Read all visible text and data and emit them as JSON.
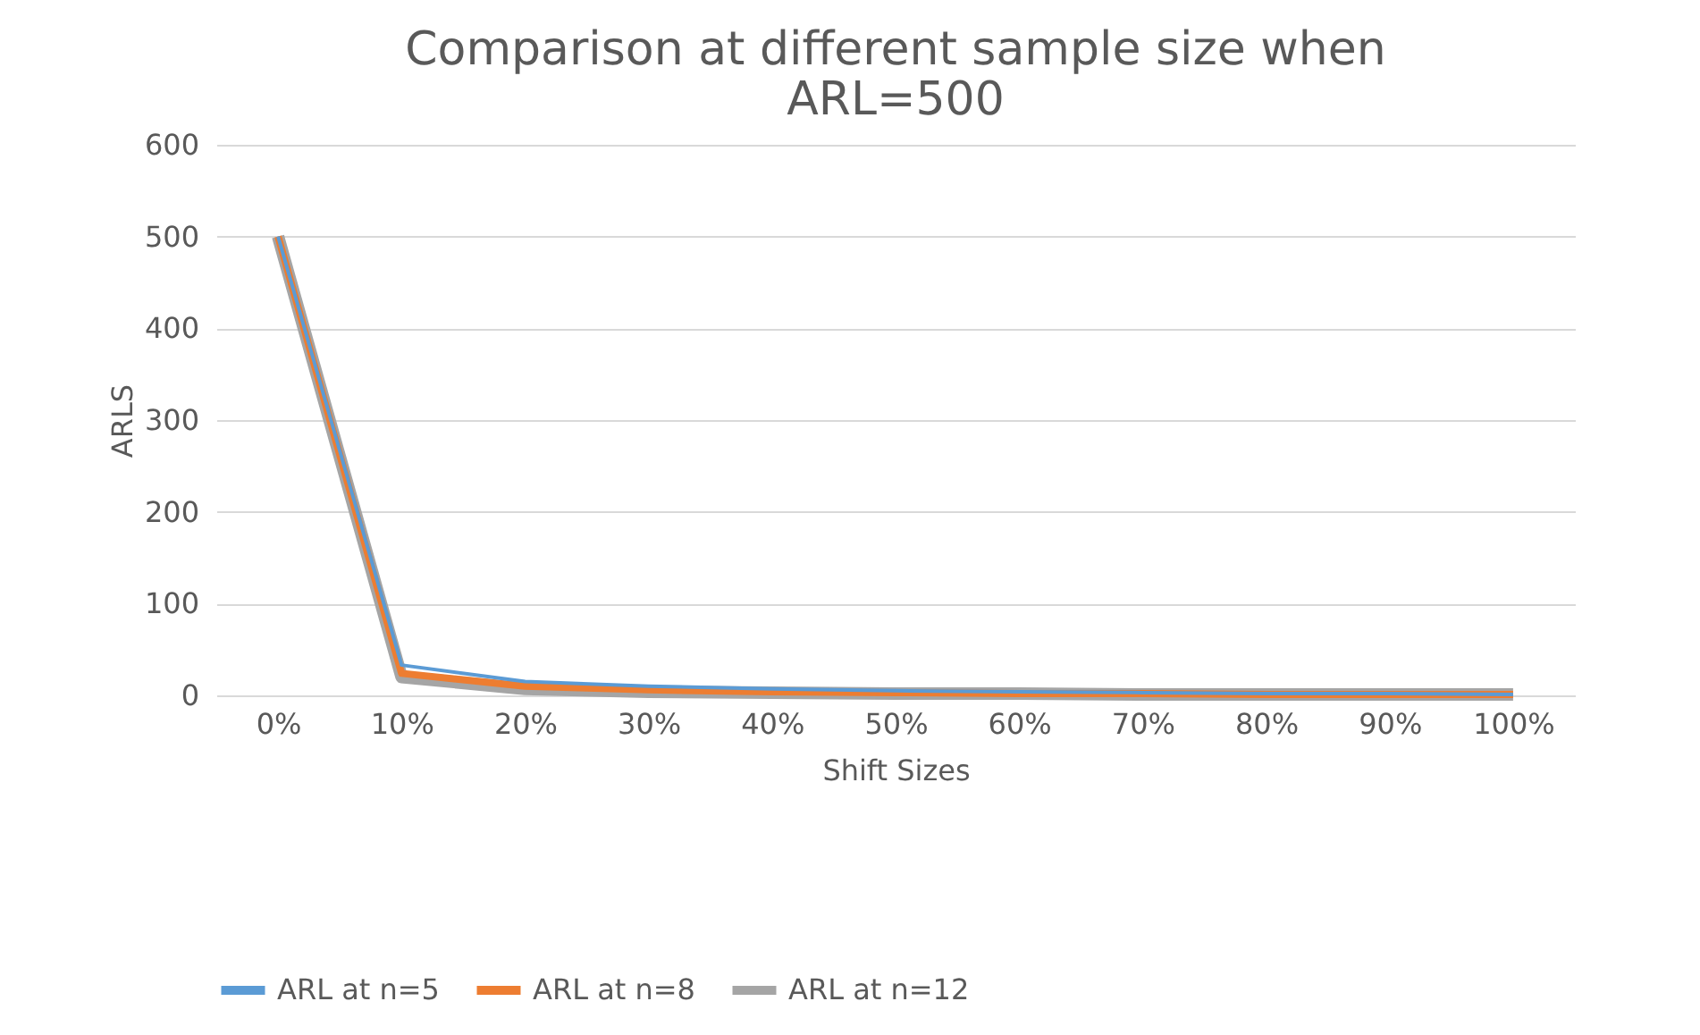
{
  "chart_data": {
    "type": "line",
    "title": [
      "Comparison at different sample size when",
      "ARL=500"
    ],
    "xlabel": "Shift Sizes",
    "ylabel": "ARLS",
    "categories": [
      "0%",
      "10%",
      "20%",
      "30%",
      "40%",
      "50%",
      "60%",
      "70%",
      "80%",
      "90%",
      "100%"
    ],
    "series": [
      {
        "name": "ARL at n=5",
        "color": "#5b9bd5",
        "values": [
          500,
          33,
          15,
          10,
          7,
          5,
          4,
          3,
          2,
          2,
          1
        ]
      },
      {
        "name": "ARL at n=8",
        "color": "#ed7d31",
        "values": [
          500,
          24,
          10,
          6,
          4,
          3,
          2,
          2,
          1,
          1,
          1
        ]
      },
      {
        "name": "ARL at n=12",
        "color": "#a5a5a5",
        "values": [
          500,
          20,
          7,
          4,
          3,
          2,
          2,
          1,
          1,
          1,
          1
        ]
      }
    ],
    "ylim": [
      0,
      600
    ],
    "yticks": [
      0,
      100,
      200,
      300,
      400,
      500,
      600
    ],
    "grid": "y",
    "legend": "bottom",
    "marker": "none",
    "line_style": "solid"
  }
}
